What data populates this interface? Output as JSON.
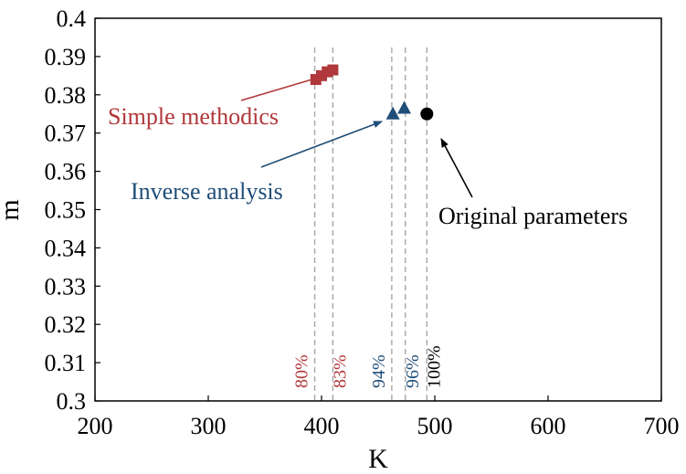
{
  "chart_data": {
    "type": "scatter",
    "xlabel": "K",
    "ylabel": "m",
    "xlim": [
      200,
      700
    ],
    "ylim": [
      0.3,
      0.4
    ],
    "x_ticks": [
      "200",
      "300",
      "400",
      "500",
      "600",
      "700"
    ],
    "y_ticks": [
      "0.3",
      "0.31",
      "0.32",
      "0.33",
      "0.34",
      "0.35",
      "0.36",
      "0.37",
      "0.38",
      "0.39",
      "0.4"
    ],
    "grid": false,
    "colors": {
      "simple": "#b0383a",
      "inverse": "#1f4e79",
      "original": "#000000",
      "guide": "#a6a6a6"
    },
    "series": [
      {
        "marker": "square",
        "color": "#b0383a",
        "points": [
          {
            "x": 395,
            "y": 0.384
          },
          {
            "x": 400,
            "y": 0.385
          },
          {
            "x": 405,
            "y": 0.386
          },
          {
            "x": 410,
            "y": 0.3865
          }
        ]
      },
      {
        "marker": "triangle",
        "color": "#1f4e79",
        "points": [
          {
            "x": 463,
            "y": 0.375
          },
          {
            "x": 473,
            "y": 0.3765
          }
        ]
      },
      {
        "marker": "circle",
        "color": "#000000",
        "points": [
          {
            "x": 493,
            "y": 0.375
          }
        ]
      }
    ],
    "annotations": [
      {
        "text": "Simple methodics",
        "color": "#b0383a"
      },
      {
        "text": "Inverse analysis",
        "color": "#1f4e79"
      },
      {
        "text": "Original parameters",
        "color": "#000000"
      }
    ],
    "reference_lines": [
      {
        "x": 394,
        "label": "80%",
        "color": "#b0383a"
      },
      {
        "x": 410,
        "label": "83%",
        "color": "#b0383a"
      },
      {
        "x": 462,
        "label": "94%",
        "color": "#1f4e79"
      },
      {
        "x": 474,
        "label": "96%",
        "color": "#1f4e79"
      },
      {
        "x": 493,
        "label": "100%",
        "color": "#000000"
      }
    ]
  }
}
